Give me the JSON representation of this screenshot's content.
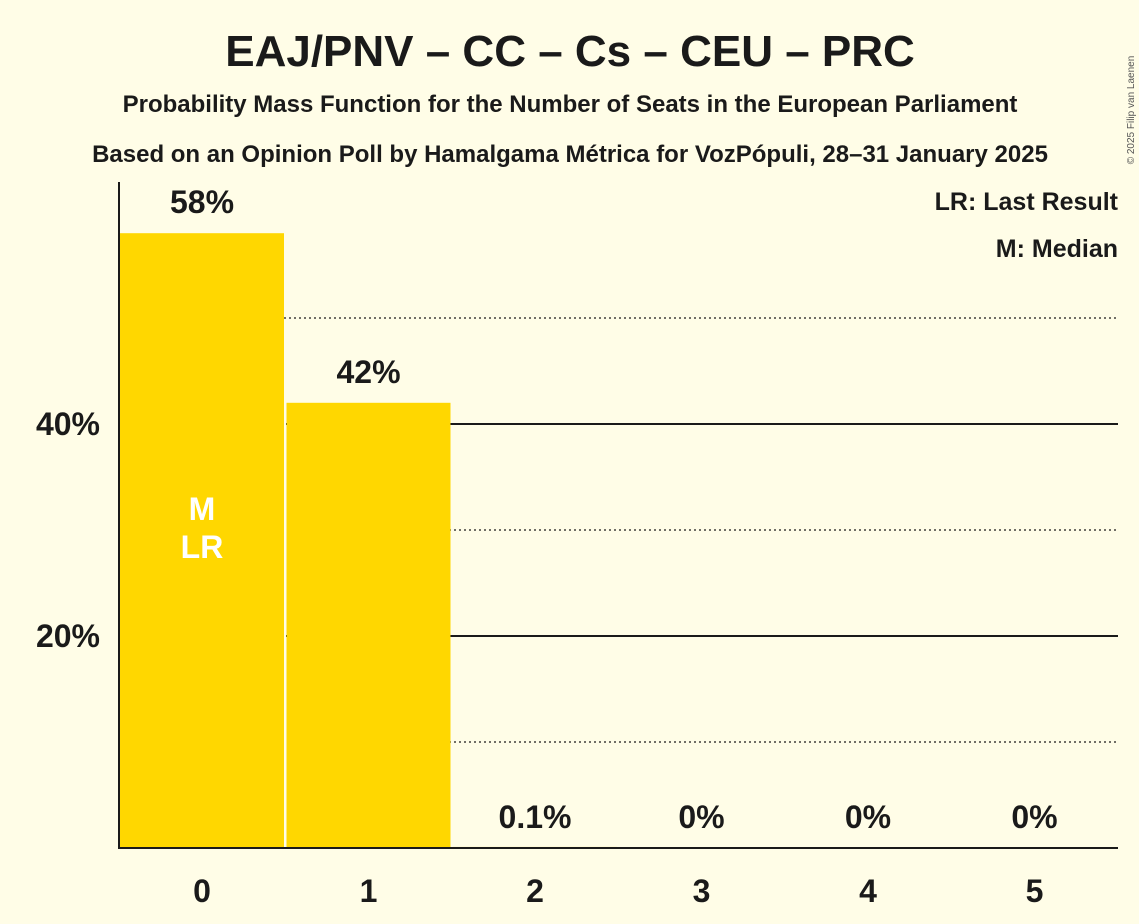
{
  "title": "EAJ/PNV – CC – Cs – CEU – PRC",
  "subtitle1": "Probability Mass Function for the Number of Seats in the European Parliament",
  "subtitle2": "Based on an Opinion Poll by Hamalgama Métrica for VozPópuli, 28–31 January 2025",
  "legend": {
    "last_result": "LR: Last Result",
    "median": "M: Median"
  },
  "copyright": "© 2025 Filip van Laenen",
  "colors": {
    "background": "#fffde7",
    "bar": "#ffd700",
    "text": "#1a1a1a"
  },
  "chart_data": {
    "type": "bar",
    "categories": [
      "0",
      "1",
      "2",
      "3",
      "4",
      "5"
    ],
    "values": [
      58,
      42,
      0.1,
      0,
      0,
      0
    ],
    "data_labels": [
      "58%",
      "42%",
      "0.1%",
      "0%",
      "0%",
      "0%"
    ],
    "bar_markers": [
      [
        "M",
        "LR"
      ],
      [],
      [],
      [],
      [],
      []
    ],
    "yticks": [
      {
        "value": 20,
        "label": "20%"
      },
      {
        "value": 40,
        "label": "40%"
      }
    ],
    "solid_gridlines": [
      20,
      40
    ],
    "dotted_gridlines": [
      10,
      30,
      50
    ],
    "ylim": [
      0,
      63
    ],
    "xlabel": "",
    "ylabel": ""
  }
}
